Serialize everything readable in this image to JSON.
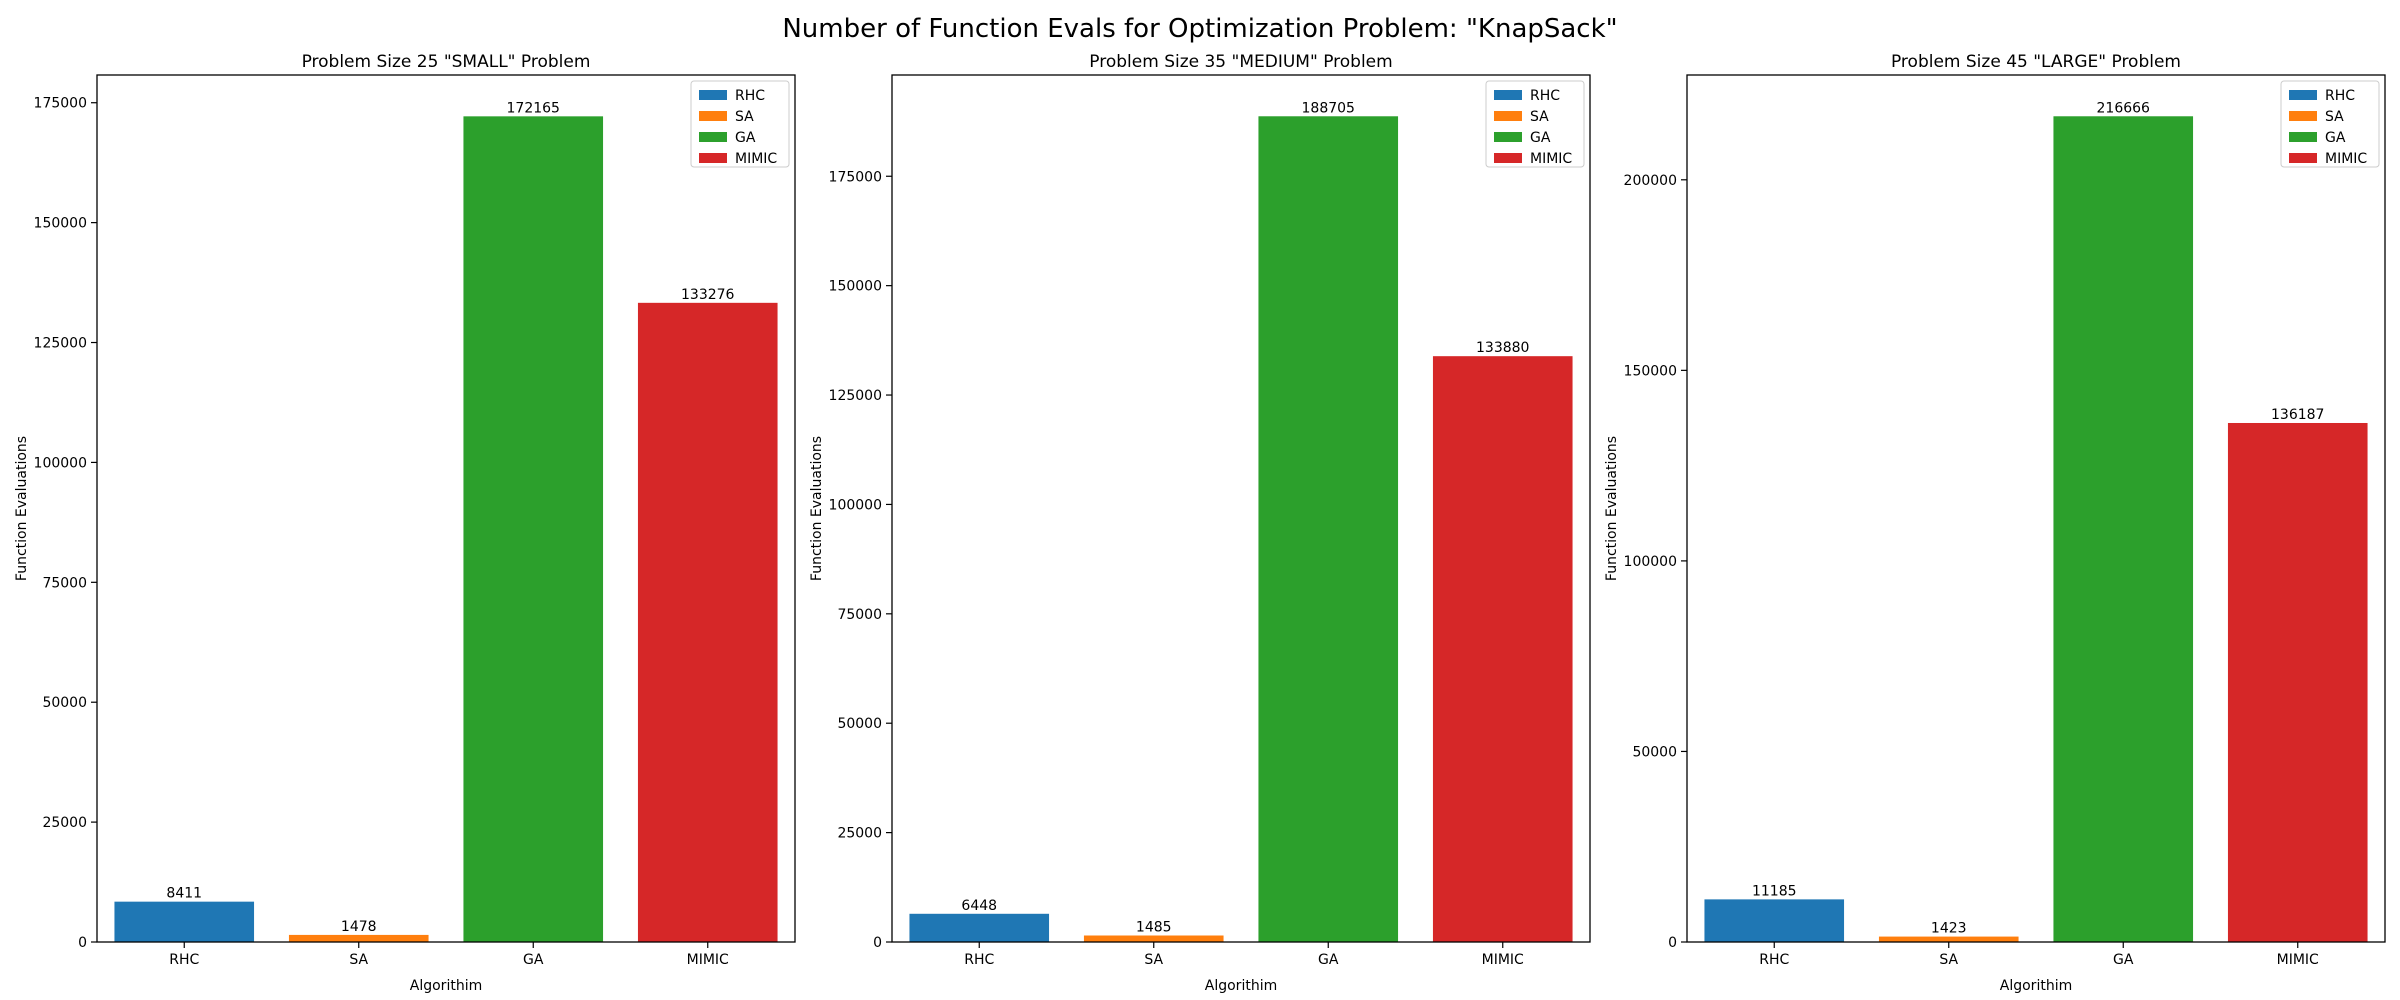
{
  "figure": {
    "title": "Number of Function Evals for Optimization Problem: \"KnapSack\""
  },
  "colors": {
    "RHC": "#1f77b4",
    "SA": "#ff7f0e",
    "GA": "#2ca02c",
    "MIMIC": "#d62728"
  },
  "chart_data": [
    {
      "type": "bar",
      "title": "Problem Size 25 \"SMALL\" Problem",
      "xlabel": "Algorithim",
      "ylabel": "Function Evaluations",
      "categories": [
        "RHC",
        "SA",
        "GA",
        "MIMIC"
      ],
      "values": [
        8411,
        1478,
        172165,
        133276
      ],
      "data_labels": [
        "8411",
        "1478",
        "172165",
        "133276"
      ],
      "ylim": [
        0,
        180782
      ],
      "yticks": [
        0,
        25000,
        50000,
        75000,
        100000,
        125000,
        150000,
        175000
      ],
      "legend": {
        "placement": "top-right",
        "entries": [
          "RHC",
          "SA",
          "GA",
          "MIMIC"
        ]
      },
      "grid": false
    },
    {
      "type": "bar",
      "title": "Problem Size 35 \"MEDIUM\" Problem",
      "xlabel": "Algorithim",
      "ylabel": "Function Evaluations",
      "categories": [
        "RHC",
        "SA",
        "GA",
        "MIMIC"
      ],
      "values": [
        6448,
        1485,
        188705,
        133880
      ],
      "data_labels": [
        "6448",
        "1485",
        "188705",
        "133880"
      ],
      "ylim": [
        0,
        198140
      ],
      "yticks": [
        0,
        25000,
        50000,
        75000,
        100000,
        125000,
        150000,
        175000
      ],
      "legend": {
        "placement": "top-right",
        "entries": [
          "RHC",
          "SA",
          "GA",
          "MIMIC"
        ]
      },
      "grid": false
    },
    {
      "type": "bar",
      "title": "Problem Size 45 \"LARGE\" Problem",
      "xlabel": "Algorithim",
      "ylabel": "Function Evaluations",
      "categories": [
        "RHC",
        "SA",
        "GA",
        "MIMIC"
      ],
      "values": [
        11185,
        1423,
        216666,
        136187
      ],
      "data_labels": [
        "11185",
        "1423",
        "216666",
        "136187"
      ],
      "ylim": [
        0,
        227499
      ],
      "yticks": [
        0,
        50000,
        100000,
        150000,
        200000
      ],
      "legend": {
        "placement": "top-right",
        "entries": [
          "RHC",
          "SA",
          "GA",
          "MIMIC"
        ]
      },
      "grid": false
    }
  ]
}
